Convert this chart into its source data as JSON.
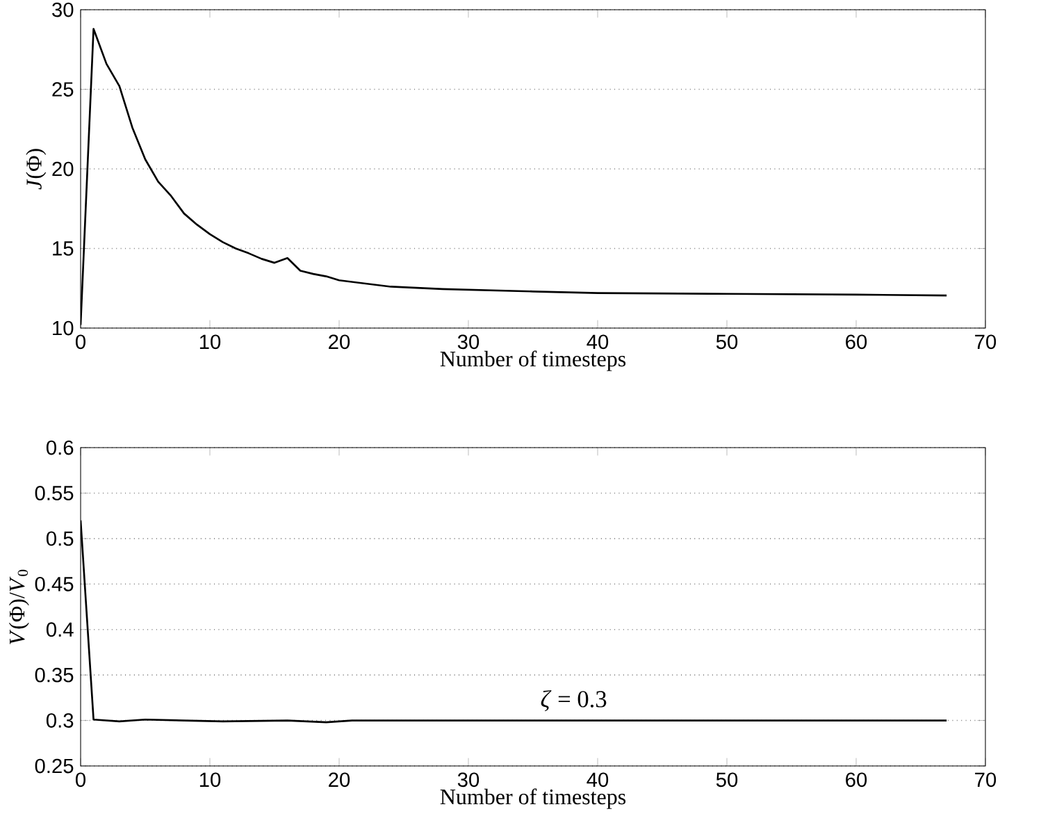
{
  "chart_data": [
    {
      "type": "line",
      "xlabel": "Number of timesteps",
      "ylabel": "*J*(Φ)",
      "x": [
        0,
        1,
        2,
        3,
        4,
        5,
        6,
        7,
        8,
        9,
        10,
        11,
        12,
        13,
        14,
        15,
        16,
        17,
        18,
        19,
        20,
        22,
        24,
        28,
        35,
        40,
        50,
        60,
        67
      ],
      "values": [
        10.2,
        28.8,
        26.6,
        25.2,
        22.6,
        20.6,
        19.2,
        18.3,
        17.2,
        16.5,
        15.9,
        15.4,
        15.0,
        14.7,
        14.35,
        14.1,
        14.4,
        13.6,
        13.4,
        13.25,
        13.0,
        12.8,
        12.6,
        12.45,
        12.3,
        12.2,
        12.15,
        12.1,
        12.05
      ],
      "color": "#000000",
      "xlim": [
        0,
        70
      ],
      "ylim": [
        10,
        30
      ],
      "xticks": [
        0,
        10,
        20,
        30,
        40,
        50,
        60,
        70
      ],
      "yticks": [
        10,
        15,
        20,
        25,
        30
      ],
      "grid": "y",
      "marker": "none",
      "line_style": "solid"
    },
    {
      "type": "line",
      "xlabel": "Number of timesteps",
      "ylabel": "*V*(Φ)/*V*$_{0}$",
      "x": [
        0,
        1,
        3,
        5,
        8,
        11,
        16,
        19,
        21,
        30,
        40,
        50,
        60,
        67
      ],
      "values": [
        0.52,
        0.301,
        0.299,
        0.301,
        0.3,
        0.299,
        0.3,
        0.298,
        0.3,
        0.3,
        0.3,
        0.3,
        0.3,
        0.3
      ],
      "color": "#000000",
      "xlim": [
        0,
        70
      ],
      "ylim": [
        0.25,
        0.6
      ],
      "xticks": [
        0,
        10,
        20,
        30,
        40,
        50,
        60,
        70
      ],
      "yticks": [
        0.25,
        0.3,
        0.35,
        0.4,
        0.45,
        0.5,
        0.55,
        0.6
      ],
      "grid": "y",
      "marker": "none",
      "line_style": "solid",
      "annotations": [
        "*ζ* = 0.3"
      ]
    }
  ]
}
